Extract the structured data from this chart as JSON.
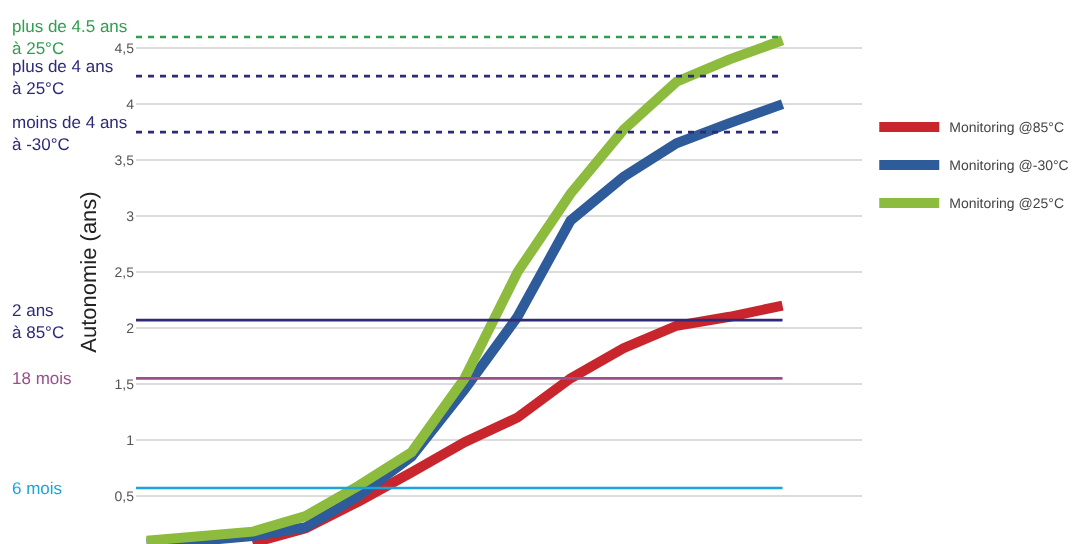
{
  "chart_data": {
    "type": "line",
    "ylabel": "Autonomie (ans)",
    "categories": [
      null,
      null,
      null,
      null,
      null,
      null,
      null,
      null,
      null,
      null,
      null,
      null,
      null
    ],
    "ylim": [
      0.07,
      4.93
    ],
    "yticks": [
      {
        "value": 0.5,
        "label": "0,5"
      },
      1,
      {
        "value": 1.5,
        "label": "1,5"
      },
      2,
      {
        "value": 2.5,
        "label": "2,5"
      },
      3,
      {
        "value": 3.5,
        "label": "3,5"
      },
      4,
      {
        "value": 4.5,
        "label": "4,5"
      }
    ],
    "grid": "y",
    "legend": "right",
    "line_style": "solid",
    "series": [
      {
        "name": "Monitoring @85°C",
        "color": "#c8262c",
        "values": [
          null,
          null,
          0.08,
          0.21,
          0.45,
          0.71,
          0.98,
          1.2,
          1.55,
          1.82,
          2.02,
          2.1,
          2.2
        ]
      },
      {
        "name": "Monitoring @-30°C",
        "color": "#2e5b9a",
        "values": [
          0.08,
          0.1,
          0.14,
          0.22,
          0.5,
          0.85,
          1.45,
          2.1,
          2.96,
          3.35,
          3.65,
          3.83,
          4.0
        ]
      },
      {
        "name": "Monitoring @25°C",
        "color": "#8dbb3e",
        "values": [
          0.1,
          0.14,
          0.18,
          0.32,
          0.59,
          0.89,
          1.55,
          2.5,
          3.2,
          3.77,
          4.2,
          4.4,
          4.57
        ]
      }
    ],
    "ref_lines": [
      {
        "axis": "y",
        "value": 4.6,
        "label": "plus de 4.5 ans\nà 25°C",
        "color": "#2e9e4f",
        "line_style": "dotted"
      },
      {
        "axis": "y",
        "value": 4.25,
        "label": "plus de 4 ans\nà 25°C",
        "color": "#2e2a7a",
        "line_style": "dotted"
      },
      {
        "axis": "y",
        "value": 3.75,
        "label": "moins de 4 ans\nà -30°C",
        "color": "#2e2a7a",
        "line_style": "dotted"
      },
      {
        "axis": "y",
        "value": 2.07,
        "label": "2 ans\nà 85°C",
        "color": "#2e2a7a",
        "line_style": "solid"
      },
      {
        "axis": "y",
        "value": 1.55,
        "label": "18 mois",
        "color": "#9b4f8a",
        "line_style": "solid"
      },
      {
        "axis": "y",
        "value": 0.57,
        "label": "6 mois",
        "color": "#1aa3dd",
        "line_style": "solid"
      }
    ]
  }
}
